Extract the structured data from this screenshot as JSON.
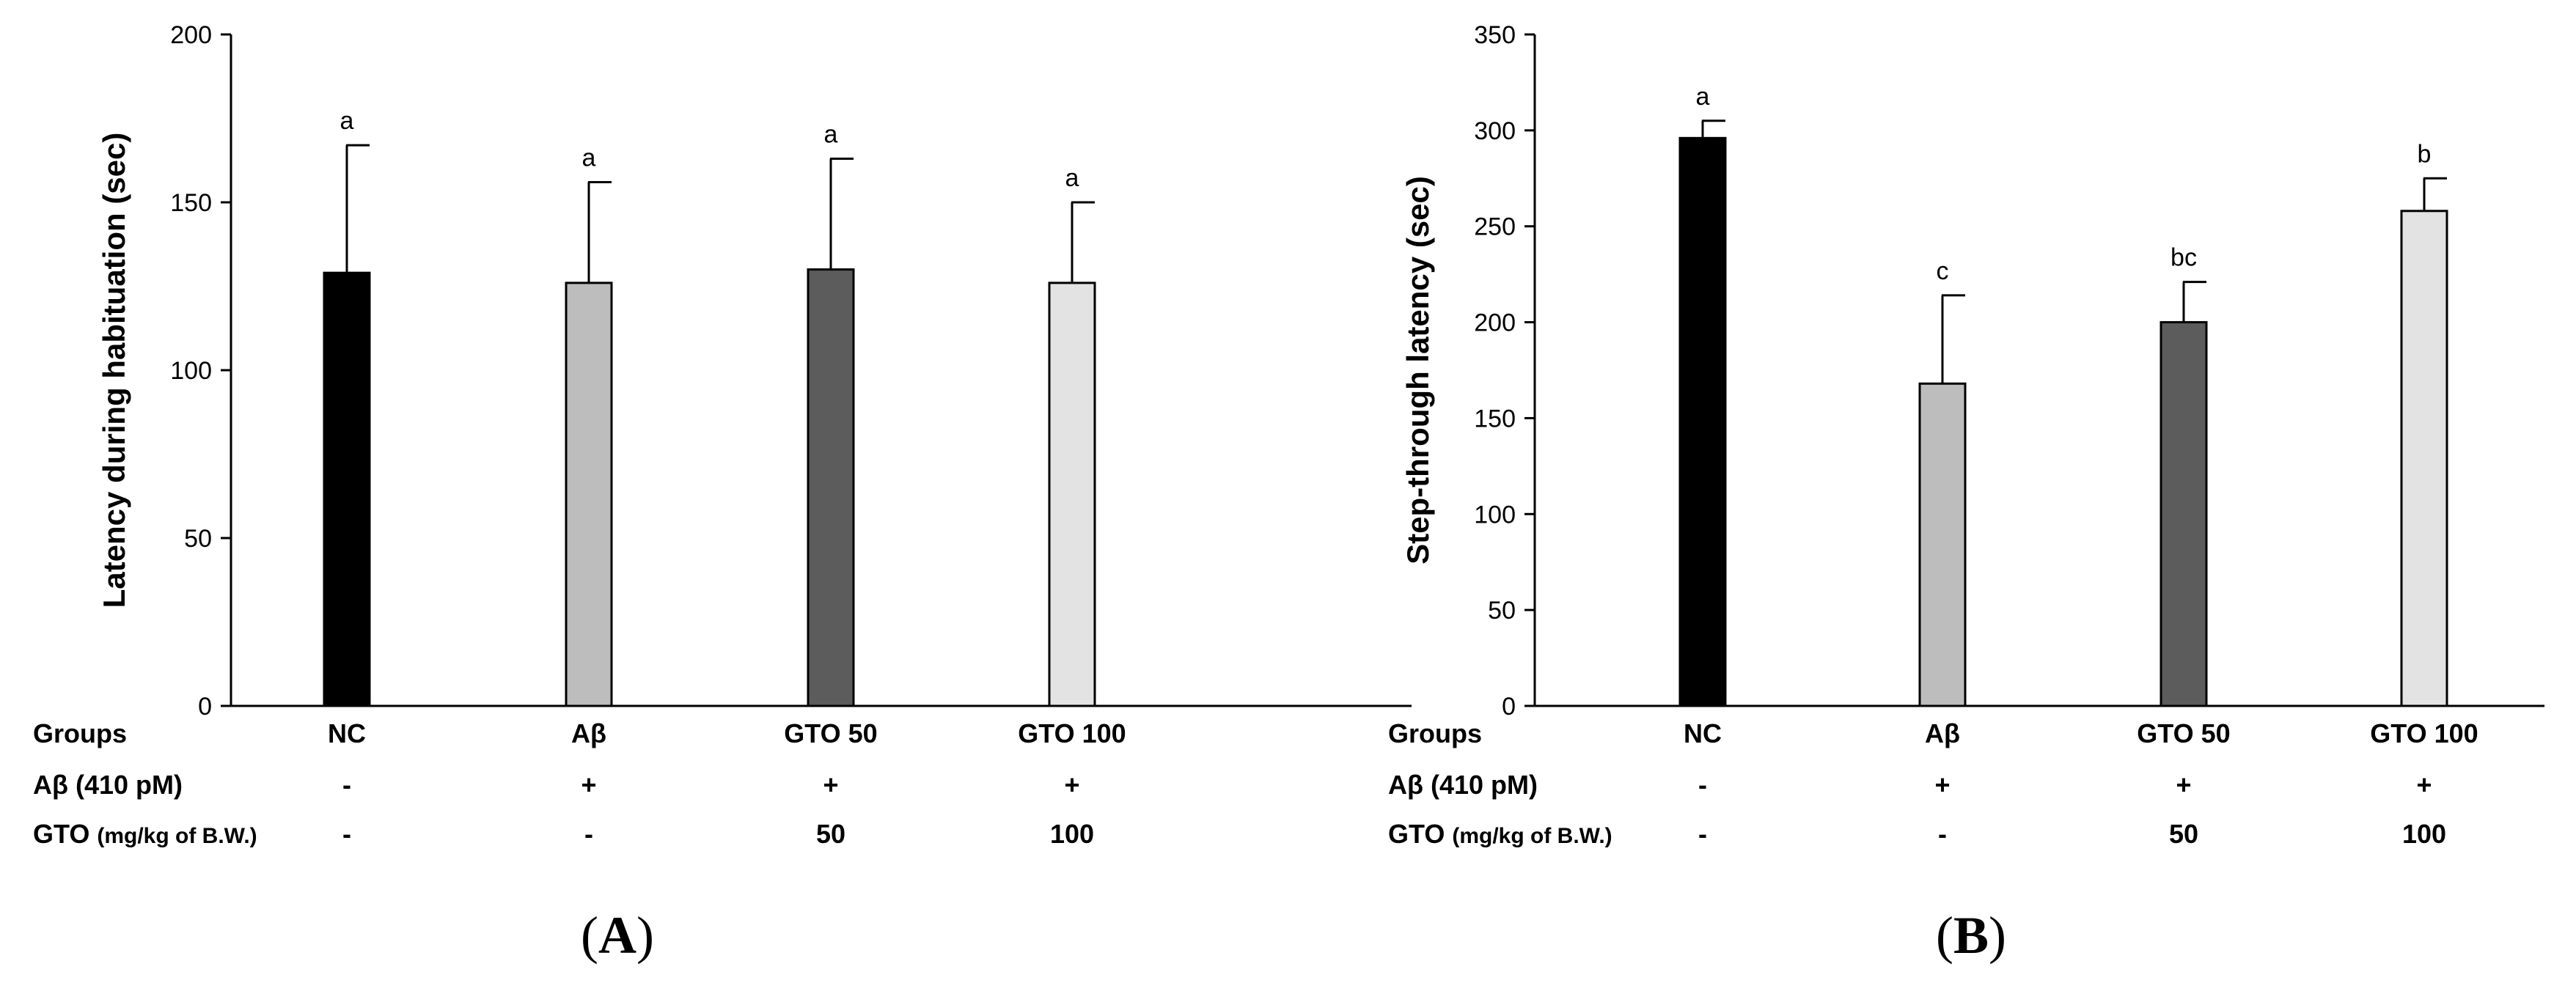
{
  "chart_data": [
    {
      "type": "bar",
      "panel": "A",
      "panel_label": "A",
      "categories": [
        "NC",
        "Aβ",
        "GTO 50",
        "GTO 100"
      ],
      "values": [
        129,
        126,
        130,
        126
      ],
      "errors": [
        38,
        30,
        33,
        24
      ],
      "significance": [
        "a",
        "a",
        "a",
        "a"
      ],
      "colors": [
        "#000000",
        "#bdbdbd",
        "#5c5c5c",
        "#e3e3e3"
      ],
      "ylabel": "Latency during habituation (sec)",
      "xlabel": "",
      "ylim": [
        0,
        200
      ],
      "yticks": [
        0,
        50,
        100,
        150,
        200
      ],
      "rows": [
        {
          "label": "Groups",
          "label_suffix": "",
          "values": [
            "NC",
            "Aβ",
            "GTO 50",
            "GTO 100"
          ]
        },
        {
          "label": "Aβ (410 pM)",
          "label_suffix": "",
          "values": [
            "-",
            "+",
            "+",
            "+"
          ]
        },
        {
          "label": "GTO",
          "label_suffix": "(mg/kg of B.W.)",
          "values": [
            "-",
            "-",
            "50",
            "100"
          ]
        }
      ]
    },
    {
      "type": "bar",
      "panel": "B",
      "panel_label": "B",
      "categories": [
        "NC",
        "Aβ",
        "GTO 50",
        "GTO 100"
      ],
      "values": [
        296,
        168,
        200,
        258
      ],
      "errors": [
        9,
        46,
        21,
        17
      ],
      "significance": [
        "a",
        "c",
        "bc",
        "b"
      ],
      "colors": [
        "#000000",
        "#bdbdbd",
        "#5c5c5c",
        "#e3e3e3"
      ],
      "ylabel": "Step-through latency (sec)",
      "xlabel": "",
      "ylim": [
        0,
        350
      ],
      "yticks": [
        0,
        50,
        100,
        150,
        200,
        250,
        300,
        350
      ],
      "rows": [
        {
          "label": "Groups",
          "label_suffix": "",
          "values": [
            "NC",
            "Aβ",
            "GTO 50",
            "GTO 100"
          ]
        },
        {
          "label": "Aβ (410 pM)",
          "label_suffix": "",
          "values": [
            "-",
            "+",
            "+",
            "+"
          ]
        },
        {
          "label": "GTO",
          "label_suffix": "(mg/kg of B.W.)",
          "values": [
            "-",
            "-",
            "50",
            "100"
          ]
        }
      ]
    }
  ]
}
